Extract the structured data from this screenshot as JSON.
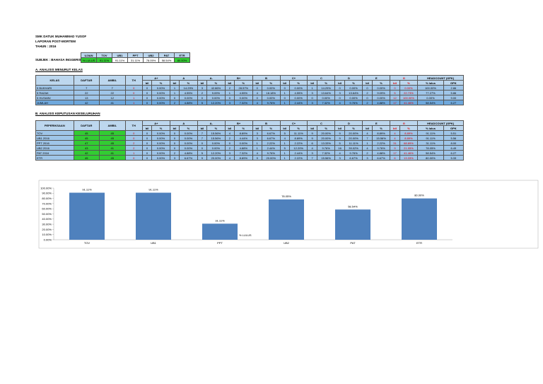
{
  "header": {
    "school": "SMK DATUK MUHAMMAD YUSOF",
    "report": "LAPORAN POST-MORTEM",
    "year": "TAHUN : 2016"
  },
  "summary": {
    "subject": "SUBJEK : BAHASA INGGERIS",
    "headers": [
      "UJIAN",
      "TOV",
      "UB1",
      "PPT",
      "UB2",
      "PAT",
      "ETR"
    ],
    "row": [
      "% LULUS",
      "91.11%",
      "91.11%",
      "31.11%",
      "78.05%",
      "58.54%",
      "80.00%"
    ]
  },
  "section_a": {
    "title": "A. ANALISIS MENURUT KELAS",
    "columns": [
      "KELAS",
      "DAFTAR",
      "AMBIL",
      "TH",
      "A+",
      "A",
      "A-",
      "B+",
      "B",
      "C+",
      "C",
      "D",
      "E",
      "G",
      "HEADCOUNT (GPK)"
    ],
    "subcolumns": [
      "bil",
      "%",
      "bil",
      "%",
      "bil",
      "%",
      "bil",
      "%",
      "bil",
      "%",
      "bil",
      "%",
      "bil",
      "%",
      "bil",
      "%",
      "bil",
      "%",
      "bil",
      "%",
      "% lulus",
      "GPK"
    ],
    "rows": [
      [
        "5 BUKHARI",
        "7",
        "7",
        "0",
        "0",
        "0.00%",
        "1",
        "14.29%",
        "3",
        "42.86%",
        "2",
        "28.57%",
        "0",
        "0.00%",
        "0",
        "0.00%",
        "1",
        "14.29%",
        "0",
        "0.00%",
        "0",
        "0.00%",
        "0",
        "0.00%",
        "100.00%",
        "2.86"
      ],
      [
        "5 RAZAK",
        "22",
        "22",
        "0",
        "0",
        "0.00%",
        "1",
        "4.55%",
        "2",
        "9.09%",
        "1",
        "4.55%",
        "4",
        "18.18%",
        "1",
        "4.55%",
        "3",
        "13.64%",
        "3",
        "13.64%",
        "2",
        "9.09%",
        "5",
        "22.73%",
        "77.27%",
        "5.86"
      ],
      [
        "5 HUSAINI",
        "13",
        "12",
        "1",
        "0",
        "0.00%",
        "0",
        "0.00%",
        "0",
        "0.00%",
        "0",
        "0.00%",
        "0",
        "0.00%",
        "0",
        "0.00%",
        "0",
        "0.00%",
        "0",
        "0.00%",
        "0",
        "0.00%",
        "12",
        "100.00%",
        "0.00%",
        "9.00"
      ],
      [
        "JUMLAH",
        "42",
        "41",
        "1",
        "0",
        "0.00%",
        "2",
        "4.88%",
        "5",
        "12.20%",
        "3",
        "7.32%",
        "4",
        "9.76%",
        "1",
        "2.44%",
        "3",
        "7.32%",
        "4",
        "9.76%",
        "2",
        "4.88%",
        "17",
        "41.46%",
        "58.54%",
        "6.27"
      ]
    ]
  },
  "section_b": {
    "title": "B. ANALISIS KEPUTUSAN KESELURUHAN",
    "columns": [
      "PEPERIKSAAN",
      "DAFTAR",
      "AMBIL",
      "TH",
      "A+",
      "A",
      "A-",
      "B+",
      "B",
      "C+",
      "C",
      "D",
      "E",
      "G",
      "HEADCOUNT (GPK)"
    ],
    "subcolumns": [
      "bil",
      "%",
      "bil",
      "%",
      "bil",
      "%",
      "bil",
      "%",
      "bil",
      "%",
      "bil",
      "%",
      "bil",
      "%",
      "bil",
      "%",
      "bil",
      "%",
      "bil",
      "%",
      "% lulus",
      "GPK"
    ],
    "rows": [
      [
        "TOV",
        "45",
        "45",
        "0",
        "0",
        "0.00%",
        "0",
        "0.00%",
        "7",
        "15.56%",
        "4",
        "8.89%",
        "3",
        "6.67%",
        "5",
        "11.11%",
        "9",
        "20.00%",
        "9",
        "20.00%",
        "4",
        "8.89%",
        "4",
        "8.89%",
        "91.11%",
        "5.51"
      ],
      [
        "UB1 2016",
        "45",
        "45",
        "0",
        "0",
        "0.00%",
        "0",
        "0.00%",
        "7",
        "15.56%",
        "2",
        "4.44%",
        "3",
        "6.67%",
        "4",
        "8.89%",
        "9",
        "20.00%",
        "9",
        "20.00%",
        "7",
        "15.56%",
        "4",
        "8.89%",
        "91.11%",
        "5.56"
      ],
      [
        "PPT 2016",
        "47",
        "45",
        "2",
        "0",
        "0.00%",
        "0",
        "0.00%",
        "0",
        "0.00%",
        "0",
        "0.00%",
        "1",
        "2.22%",
        "1",
        "2.22%",
        "6",
        "13.33%",
        "5",
        "11.11%",
        "1",
        "2.22%",
        "31",
        "68.89%",
        "31.11%",
        "8.00"
      ],
      [
        "UB2 2016",
        "43",
        "41",
        "2",
        "0",
        "0.00%",
        "0",
        "0.00%",
        "0",
        "0.00%",
        "2",
        "4.88%",
        "1",
        "2.44%",
        "5",
        "12.20%",
        "4",
        "9.76%",
        "16",
        "39.02%",
        "4",
        "9.76%",
        "9",
        "21.95%",
        "78.05%",
        "6.49"
      ],
      [
        "PAT 2016",
        "42",
        "41",
        "1",
        "0",
        "0.00%",
        "2",
        "4.88%",
        "5",
        "12.20%",
        "3",
        "7.32%",
        "4",
        "9.76%",
        "1",
        "2.44%",
        "3",
        "7.32%",
        "4",
        "9.76%",
        "2",
        "4.88%",
        "17",
        "41.46%",
        "58.54%",
        "6.27"
      ],
      [
        "ETR",
        "45",
        "45",
        "0",
        "0",
        "0.00%",
        "3",
        "6.67%",
        "9",
        "20.00%",
        "4",
        "8.89%",
        "9",
        "20.00%",
        "1",
        "2.22%",
        "7",
        "15.56%",
        "3",
        "6.67%",
        "3",
        "6.67%",
        "6",
        "13.33%",
        "80.00%",
        "5.33"
      ]
    ]
  },
  "chart_data": {
    "type": "bar",
    "categories": [
      "TOV",
      "UB1",
      "PPT",
      "UB2",
      "PAT",
      "ETR"
    ],
    "series": [
      {
        "name": "% LULUS",
        "color": "#4f81bd",
        "values": [
          91.11,
          91.11,
          31.11,
          78.05,
          58.54,
          80.0
        ],
        "value_labels": [
          "91.11%",
          "91.11%",
          "31.11%",
          "78.05%",
          "58.54%",
          "80.00%"
        ]
      }
    ],
    "ylim": [
      0,
      100
    ],
    "yticks": [
      {
        "value": 0,
        "label": "0.00%"
      },
      {
        "value": 10,
        "label": "10.00%"
      },
      {
        "value": 20,
        "label": "20.00%"
      },
      {
        "value": 30,
        "label": "30.00%"
      },
      {
        "value": 40,
        "label": "40.00%"
      },
      {
        "value": 50,
        "label": "50.00%"
      },
      {
        "value": 60,
        "label": "60.00%"
      },
      {
        "value": 70,
        "label": "70.00%"
      },
      {
        "value": 80,
        "label": "80.00%"
      },
      {
        "value": 90,
        "label": "90.00%"
      },
      {
        "value": 100,
        "label": "100.00%"
      }
    ]
  }
}
